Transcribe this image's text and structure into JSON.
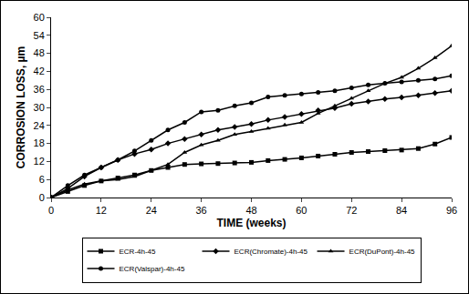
{
  "chart_data": {
    "type": "line",
    "x_label": "TIME (weeks)",
    "y_label": "CORROSION LOSS, µm",
    "x": [
      0,
      4,
      8,
      12,
      16,
      20,
      24,
      28,
      32,
      36,
      40,
      44,
      48,
      52,
      56,
      60,
      64,
      68,
      72,
      76,
      80,
      84,
      88,
      92,
      96
    ],
    "series": [
      {
        "name": "ECR-4h-45",
        "color": "#000000",
        "marker": "square",
        "values": [
          0,
          2,
          4,
          5.5,
          6.5,
          7.5,
          9,
          10,
          11,
          11.2,
          11.3,
          11.5,
          11.7,
          12.3,
          12.7,
          13.2,
          13.8,
          14.4,
          15,
          15.3,
          15.6,
          15.8,
          16.3,
          17.8,
          20
        ]
      },
      {
        "name": "ECR(Chromate)-4h-45",
        "color": "#000000",
        "marker": "diamond",
        "values": [
          0,
          3,
          7,
          10,
          12.5,
          14.5,
          16,
          18,
          19.5,
          21,
          22.5,
          23.5,
          24.5,
          25.8,
          26.8,
          27.8,
          29,
          29.8,
          31.2,
          32,
          32.8,
          33.3,
          34,
          34.8,
          35.5
        ]
      },
      {
        "name": "ECR(DuPont)-4h-45",
        "color": "#000000",
        "marker": "triangle",
        "values": [
          0,
          2.5,
          4.5,
          5.5,
          6,
          7,
          9,
          11,
          15,
          17.5,
          19,
          21,
          22,
          23,
          24.2,
          25,
          28,
          30.5,
          33,
          35.5,
          38,
          40,
          43,
          46.5,
          50.5
        ]
      },
      {
        "name": "ECR(Valspar)-4h-45",
        "color": "#000000",
        "marker": "circle",
        "values": [
          0,
          4,
          7.5,
          10,
          12.5,
          15.5,
          19,
          22.5,
          25,
          28.5,
          29,
          30.5,
          31.5,
          33.5,
          34,
          34.5,
          35,
          35.5,
          36.5,
          37.5,
          38,
          38.5,
          39,
          39.5,
          40.5
        ]
      }
    ],
    "xlim": [
      0,
      96
    ],
    "xticks": [
      0,
      12,
      24,
      36,
      48,
      60,
      72,
      84,
      96
    ],
    "ylim": [
      0,
      60
    ],
    "yticks": [
      0,
      6,
      12,
      18,
      24,
      30,
      36,
      42,
      48,
      54,
      60
    ],
    "grid": false,
    "legend": "bottom"
  }
}
